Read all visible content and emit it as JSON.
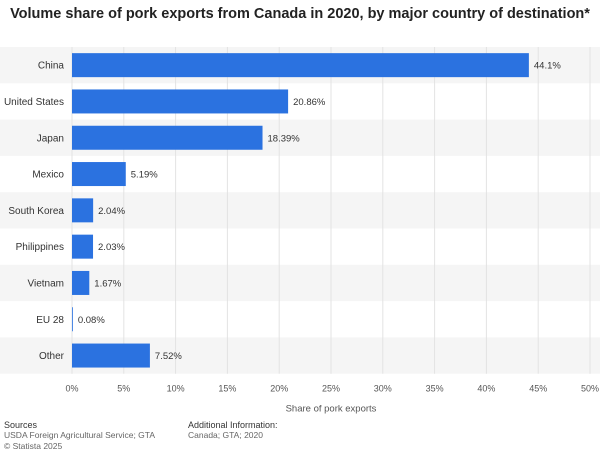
{
  "chart_data": {
    "type": "bar",
    "orientation": "horizontal",
    "title": "Volume share of pork exports from Canada in 2020, by major country of destination*",
    "categories": [
      "China",
      "United States",
      "Japan",
      "Mexico",
      "South Korea",
      "Philippines",
      "Vietnam",
      "EU 28",
      "Other"
    ],
    "values": [
      44.1,
      20.86,
      18.39,
      5.19,
      2.04,
      2.03,
      1.67,
      0.08,
      7.52
    ],
    "value_labels": [
      "44.1%",
      "20.86%",
      "18.39%",
      "5.19%",
      "2.04%",
      "2.03%",
      "1.67%",
      "0.08%",
      "7.52%"
    ],
    "xlabel": "Share of pork exports",
    "ylabel": "",
    "xlim": [
      0,
      50
    ],
    "xticks": [
      0,
      5,
      10,
      15,
      20,
      25,
      30,
      35,
      40,
      45,
      50
    ],
    "xtick_labels": [
      "0%",
      "5%",
      "10%",
      "15%",
      "20%",
      "25%",
      "30%",
      "35%",
      "40%",
      "45%",
      "50%"
    ],
    "grid": true,
    "bar_color": "#2b72e0"
  },
  "footer": {
    "sources_title": "Sources",
    "sources_text": "USDA Foreign Agricultural Service; GTA",
    "copyright": "© Statista 2025",
    "additional_title": "Additional Information:",
    "additional_text": "Canada; GTA; 2020"
  }
}
